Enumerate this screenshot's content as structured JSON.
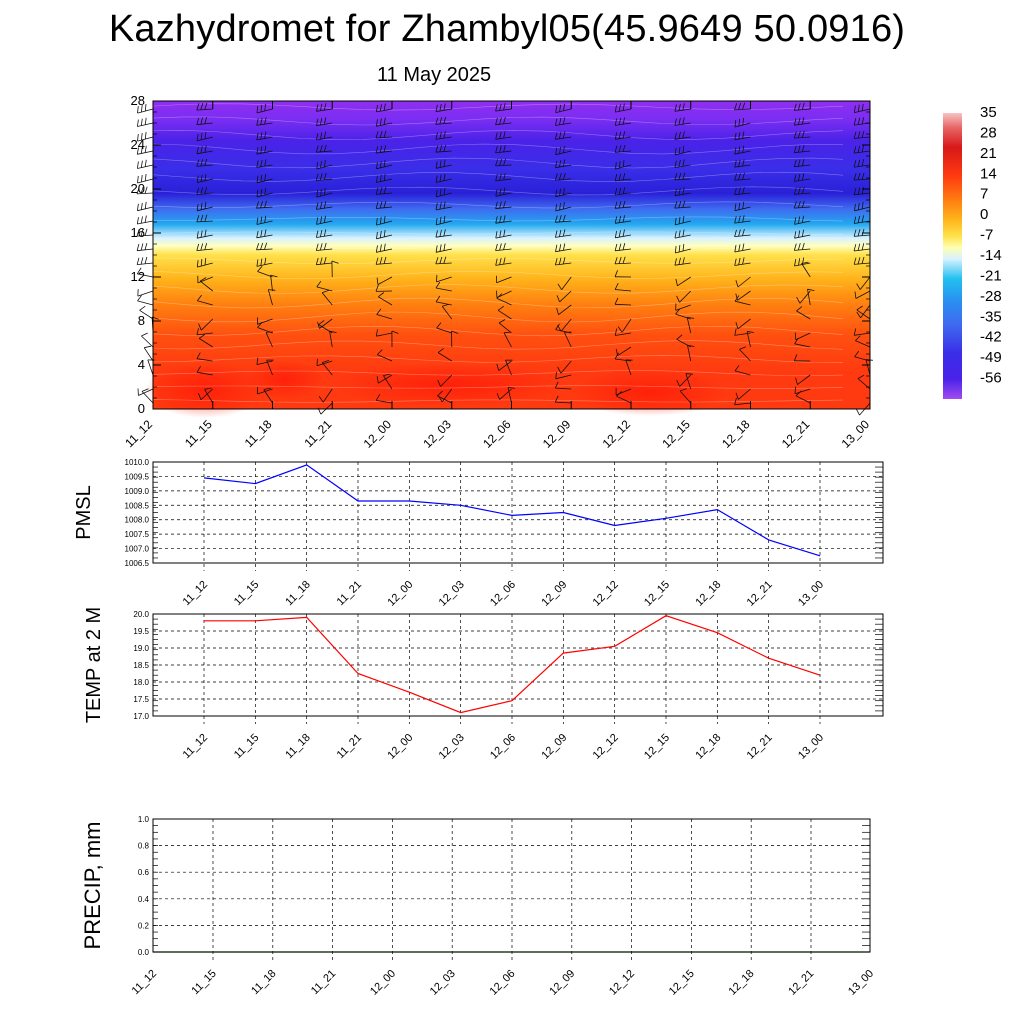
{
  "header": {
    "title": "Kazhydromet for Zhambyl05(45.9649 50.0916)",
    "date": "11 May 2025"
  },
  "colors": {
    "pmsl_line": "#0000ff",
    "temp_line": "#ff0000",
    "precip_line": "#006400",
    "grid": "#000000"
  },
  "chart_data": [
    {
      "type": "heatmap",
      "name": "vertical-cross-section",
      "x": [
        "11_12",
        "11_15",
        "11_18",
        "11_21",
        "12_00",
        "12_03",
        "12_06",
        "12_09",
        "12_12",
        "12_15",
        "12_18",
        "12_21",
        "13_00"
      ],
      "yticks": [
        0,
        4,
        8,
        12,
        16,
        20,
        24,
        28
      ],
      "ylim": [
        0,
        28
      ],
      "colorbar": {
        "labels": [
          "35",
          "28",
          "21",
          "14",
          "7",
          "0",
          "-7",
          "-14",
          "-21",
          "-28",
          "-35",
          "-42",
          "-49",
          "-56"
        ],
        "range": [
          -63,
          35
        ]
      },
      "grid": false,
      "overlay": "wind barbs"
    },
    {
      "type": "line",
      "name": "pmsl",
      "ylabel": "PMSL",
      "categories": [
        "11_12",
        "11_15",
        "11_18",
        "11_21",
        "12_00",
        "12_03",
        "12_06",
        "12_09",
        "12_12",
        "12_15",
        "12_18",
        "12_21",
        "13_00"
      ],
      "values": [
        1009.45,
        1009.25,
        1009.9,
        1008.65,
        1008.65,
        1008.5,
        1008.15,
        1008.25,
        1007.8,
        1008.05,
        1008.35,
        1007.3,
        1006.75
      ],
      "yticks": [
        "1006.5",
        "1007.0",
        "1007.5",
        "1008.0",
        "1008.5",
        "1009.0",
        "1009.5",
        "1010.0"
      ],
      "ylim": [
        1006.5,
        1010.0
      ],
      "grid": true
    },
    {
      "type": "line",
      "name": "temp",
      "ylabel": "TEMP at 2 M",
      "categories": [
        "11_12",
        "11_15",
        "11_18",
        "11_21",
        "12_00",
        "12_03",
        "12_06",
        "12_09",
        "12_12",
        "12_15",
        "12_18",
        "12_21",
        "13_00"
      ],
      "values": [
        19.8,
        19.8,
        19.9,
        18.25,
        17.7,
        17.1,
        17.45,
        18.85,
        19.05,
        19.95,
        19.45,
        18.7,
        18.2
      ],
      "yticks": [
        "17.0",
        "17.5",
        "18.0",
        "18.5",
        "19.0",
        "19.5",
        "20.0"
      ],
      "ylim": [
        17.0,
        20.0
      ],
      "grid": true
    },
    {
      "type": "line",
      "name": "precip",
      "ylabel": "PRECIP, mm",
      "categories": [
        "11_12",
        "11_15",
        "11_18",
        "11_21",
        "12_00",
        "12_03",
        "12_06",
        "12_09",
        "12_12",
        "12_15",
        "12_18",
        "12_21",
        "13_00"
      ],
      "values": [
        0,
        0,
        0,
        0,
        0,
        0,
        0,
        0,
        0,
        0,
        0,
        0,
        0
      ],
      "yticks": [
        "0.0",
        "0.2",
        "0.4",
        "0.6",
        "0.8",
        "1.0"
      ],
      "ylim": [
        0,
        1.0
      ],
      "grid": true
    }
  ]
}
